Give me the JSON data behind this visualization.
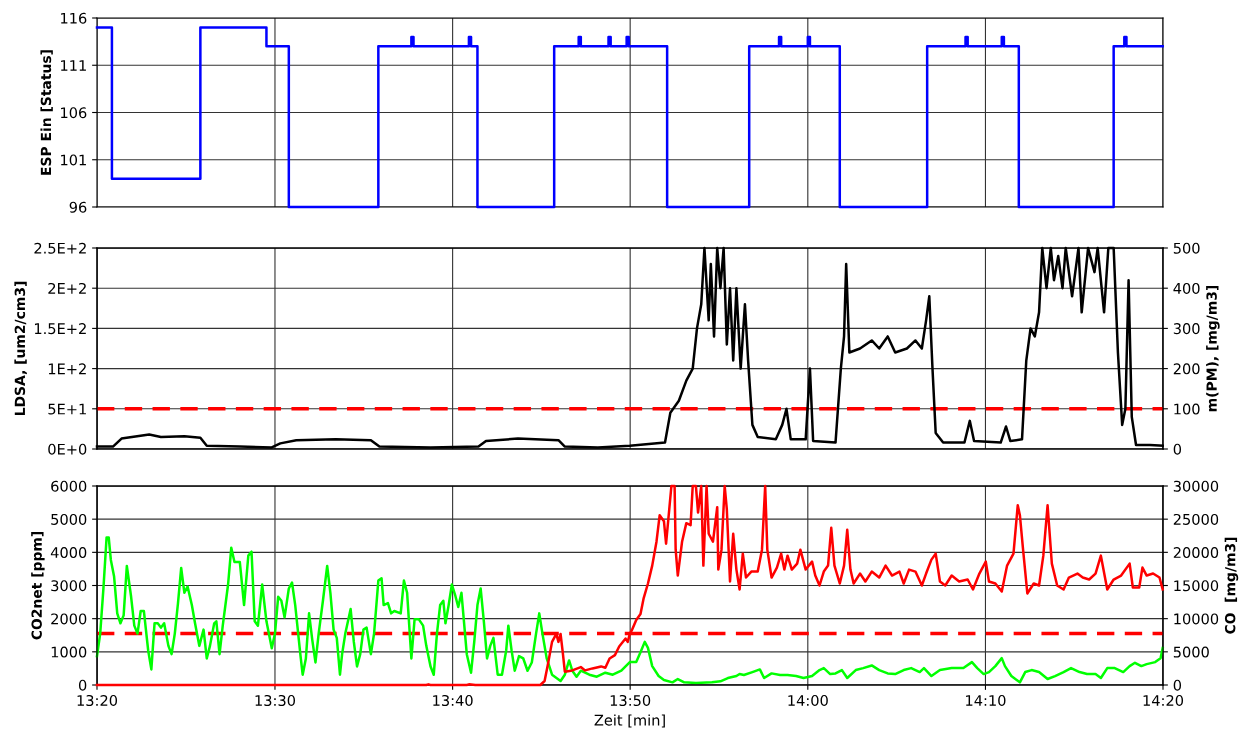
{
  "chart_data": [
    {
      "type": "step",
      "ylabel": "ESP Ein [Status]",
      "xlim": [
        13.333,
        14.3333
      ],
      "xticks": [
        {
          "value": 13.333,
          "label": null
        },
        {
          "value": 13.5,
          "label": null
        },
        {
          "value": 13.6667,
          "label": null
        },
        {
          "value": 13.8333,
          "label": null
        },
        {
          "value": 14.0,
          "label": null
        },
        {
          "value": 14.1667,
          "label": null
        },
        {
          "value": 14.3333,
          "label": null
        }
      ],
      "ylim": [
        96,
        116
      ],
      "yticks": [
        96,
        101,
        106,
        111,
        116
      ],
      "grid": true,
      "tick_labels": "y",
      "series": [
        {
          "color": "#0000ff",
          "x": [
            13.333,
            13.347,
            13.43,
            13.492,
            13.513,
            13.597,
            13.628,
            13.63,
            13.682,
            13.684,
            13.69,
            13.762,
            13.785,
            13.787,
            13.813,
            13.815,
            13.83,
            13.832,
            13.868,
            13.945,
            13.973,
            13.975,
            14.0,
            14.002,
            14.03,
            14.112,
            14.148,
            14.15,
            14.182,
            14.184,
            14.198,
            14.287,
            14.297,
            14.299,
            14.333
          ],
          "values": [
            115,
            99,
            115,
            113,
            96,
            113,
            114,
            113,
            114,
            113,
            96,
            113,
            114,
            113,
            114,
            113,
            114,
            113,
            96,
            113,
            114,
            113,
            114,
            113,
            96,
            113,
            114,
            113,
            114,
            113,
            96,
            113,
            114,
            113,
            113
          ]
        }
      ]
    },
    {
      "type": "line",
      "ylabel": "LDSA, [um2/cm3]",
      "y2label": "m(PM), [mg/m3]",
      "xlim": [
        13.333,
        14.3333
      ],
      "xticks": [
        {
          "value": 13.333,
          "label": null
        },
        {
          "value": 13.5,
          "label": null
        },
        {
          "value": 13.6667,
          "label": null
        },
        {
          "value": 13.8333,
          "label": null
        },
        {
          "value": 14.0,
          "label": null
        },
        {
          "value": 14.1667,
          "label": null
        },
        {
          "value": 14.3333,
          "label": null
        }
      ],
      "ylim": [
        0,
        250
      ],
      "yticks": [
        {
          "value": 0,
          "label": "0E+0"
        },
        {
          "value": 50,
          "label": "5E+1"
        },
        {
          "value": 100,
          "label": "1E+2"
        },
        {
          "value": 150,
          "label": "1.5E+2"
        },
        {
          "value": 200,
          "label": "2E+2"
        },
        {
          "value": 250,
          "label": "2.5E+2"
        }
      ],
      "y2lim": [
        0,
        500
      ],
      "y2ticks": [
        0,
        100,
        200,
        300,
        400,
        500
      ],
      "grid": true,
      "tick_labels": "y",
      "ref_lines": [
        {
          "axis": "y",
          "value": 50,
          "color": "#ff0000",
          "line_style": "dashed"
        }
      ],
      "series": [
        {
          "color": "#000000",
          "x": [
            13.333,
            13.348,
            13.356,
            13.382,
            13.393,
            13.415,
            13.43,
            13.436,
            13.467,
            13.497,
            13.505,
            13.52,
            13.557,
            13.59,
            13.598,
            13.646,
            13.691,
            13.698,
            13.728,
            13.766,
            13.772,
            13.803,
            13.833,
            13.866,
            13.871,
            13.879,
            13.886,
            13.892,
            13.896,
            13.9,
            13.903,
            13.907,
            13.909,
            13.912,
            13.915,
            13.918,
            13.921,
            13.924,
            13.927,
            13.93,
            13.933,
            13.937,
            13.941,
            13.944,
            13.948,
            13.953,
            13.97,
            13.976,
            13.98,
            13.984,
            13.998,
            14.002,
            14.005,
            14.026,
            14.031,
            14.034,
            14.036,
            14.039,
            14.049,
            14.06,
            14.067,
            14.075,
            14.082,
            14.093,
            14.101,
            14.107,
            14.111,
            14.114,
            14.117,
            14.12,
            14.127,
            14.147,
            14.152,
            14.156,
            14.181,
            14.186,
            14.19,
            14.201,
            14.205,
            14.209,
            14.213,
            14.217,
            14.22,
            14.224,
            14.228,
            14.231,
            14.235,
            14.239,
            14.242,
            14.248,
            14.254,
            14.257,
            14.263,
            14.269,
            14.272,
            14.278,
            14.282,
            14.287,
            14.291,
            14.295,
            14.298,
            14.301,
            14.304,
            14.308,
            14.321,
            14.333
          ],
          "values": [
            3,
            3,
            13,
            18,
            15,
            16,
            14,
            4,
            3,
            2,
            7,
            11,
            12,
            11,
            3,
            2,
            3,
            10,
            13,
            11,
            3,
            2,
            4,
            8,
            45,
            60,
            85,
            100,
            150,
            180,
            250,
            160,
            230,
            140,
            250,
            200,
            250,
            130,
            200,
            110,
            200,
            100,
            180,
            110,
            30,
            15,
            12,
            30,
            50,
            12,
            12,
            100,
            10,
            8,
            100,
            140,
            230,
            120,
            125,
            135,
            125,
            140,
            120,
            125,
            135,
            125,
            160,
            190,
            100,
            20,
            8,
            8,
            35,
            10,
            8,
            28,
            10,
            12,
            110,
            150,
            140,
            170,
            250,
            200,
            250,
            210,
            240,
            200,
            250,
            190,
            250,
            170,
            250,
            220,
            250,
            170,
            250,
            250,
            120,
            30,
            50,
            210,
            40,
            5,
            5,
            4
          ]
        }
      ]
    },
    {
      "type": "line",
      "xlabel": "Zeit [min]",
      "ylabel": "CO2net [ppm]",
      "y2label": "CO  [mg/m3]",
      "xlim": [
        13.333,
        14.3333
      ],
      "xticks": [
        {
          "value": 13.333,
          "label": "13:20"
        },
        {
          "value": 13.5,
          "label": "13:30"
        },
        {
          "value": 13.6667,
          "label": "13:40"
        },
        {
          "value": 13.8333,
          "label": "13:50"
        },
        {
          "value": 14.0,
          "label": "14:00"
        },
        {
          "value": 14.1667,
          "label": "14:10"
        },
        {
          "value": 14.3333,
          "label": "14:20"
        }
      ],
      "ylim": [
        0,
        6000
      ],
      "yticks": [
        0,
        1000,
        2000,
        3000,
        4000,
        5000,
        6000
      ],
      "y2lim": [
        0,
        30000
      ],
      "y2ticks": [
        0,
        5000,
        10000,
        15000,
        20000,
        25000,
        30000
      ],
      "grid": true,
      "ref_lines": [
        {
          "axis": "y",
          "value": 1550,
          "color": "#ff0000",
          "line_style": "dashed"
        }
      ],
      "series": [
        {
          "color": "#00ff00",
          "x": [
            13.333,
            13.336,
            13.339,
            13.342,
            13.344,
            13.346,
            13.349,
            13.352,
            13.355,
            13.358,
            13.361,
            13.365,
            13.368,
            13.371,
            13.374,
            13.377,
            13.381,
            13.384,
            13.387,
            13.39,
            13.393,
            13.396,
            13.4,
            13.403,
            13.406,
            13.409,
            13.412,
            13.415,
            13.418,
            13.422,
            13.425,
            13.429,
            13.433,
            13.436,
            13.439,
            13.443,
            13.445,
            13.448,
            13.451,
            13.456,
            13.459,
            13.462,
            13.467,
            13.471,
            13.475,
            13.478,
            13.481,
            13.484,
            13.488,
            13.492,
            13.497,
            13.5,
            13.503,
            13.506,
            13.509,
            13.513,
            13.516,
            13.519,
            13.521,
            13.524,
            13.526,
            13.529,
            13.532,
            13.535,
            13.538,
            13.541,
            13.545,
            13.549,
            13.552,
            13.555,
            13.558,
            13.561,
            13.563,
            13.566,
            13.571,
            13.574,
            13.577,
            13.58,
            13.583,
            13.586,
            13.59,
            13.593,
            13.597,
            13.6,
            13.602,
            13.606,
            13.609,
            13.612,
            13.618,
            13.621,
            13.624,
            13.628,
            13.631,
            13.635,
            13.639,
            13.642,
            13.646,
            13.649,
            13.652,
            13.655,
            13.658,
            13.66,
            13.663,
            13.666,
            13.669,
            13.672,
            13.675,
            13.677,
            13.68,
            13.684,
            13.687,
            13.69,
            13.693,
            13.696,
            13.699,
            13.702,
            13.705,
            13.709,
            13.713,
            13.717,
            13.719,
            13.722,
            13.725,
            13.729,
            13.733,
            13.737,
            13.741,
            13.745,
            13.748,
            13.751,
            13.755,
            13.76,
            13.768,
            13.772,
            13.776,
            13.779,
            13.783,
            13.787,
            13.795,
            13.802,
            13.81,
            13.817,
            13.825,
            13.833,
            13.839,
            13.843,
            13.847,
            13.85,
            13.854,
            13.86,
            13.865,
            13.873,
            13.878,
            13.884,
            13.895,
            13.91,
            13.918,
            13.925,
            13.933,
            13.936,
            13.94,
            13.948,
            13.955,
            13.959,
            13.966,
            13.974,
            13.981,
            13.989,
            13.996,
            14.004,
            14.011,
            14.015,
            14.021,
            14.026,
            14.032,
            14.037,
            14.045,
            14.052,
            14.06,
            14.067,
            14.075,
            14.082,
            14.09,
            14.097,
            14.105,
            14.109,
            14.116,
            14.124,
            14.135,
            14.146,
            14.154,
            14.159,
            14.165,
            14.17,
            14.176,
            14.182,
            14.185,
            14.191,
            14.199,
            14.204,
            14.21,
            14.217,
            14.225,
            14.232,
            14.24,
            14.247,
            14.255,
            14.262,
            14.27,
            14.275,
            14.281,
            14.288,
            14.296,
            14.302,
            14.307,
            14.313,
            14.318,
            14.326,
            14.331,
            14.333
          ],
          "values": [
            870,
            1550,
            2900,
            4450,
            4450,
            3770,
            3280,
            2160,
            1860,
            2100,
            3590,
            2660,
            1790,
            1550,
            2230,
            2230,
            1050,
            470,
            1860,
            1860,
            1730,
            1860,
            1180,
            930,
            1550,
            2470,
            3530,
            2780,
            2970,
            2410,
            1860,
            1180,
            1670,
            800,
            1180,
            1860,
            1920,
            930,
            1790,
            3030,
            4140,
            3710,
            3710,
            2410,
            3900,
            4020,
            1920,
            1790,
            3030,
            1920,
            1110,
            1550,
            2660,
            2540,
            2040,
            2910,
            3090,
            2410,
            1790,
            870,
            310,
            800,
            2160,
            1360,
            680,
            1550,
            2540,
            3590,
            2780,
            1670,
            1420,
            310,
            930,
            1550,
            2290,
            1300,
            560,
            930,
            1670,
            1730,
            930,
            1550,
            3150,
            3220,
            2410,
            2470,
            2160,
            2230,
            2160,
            3150,
            2780,
            800,
            1980,
            1980,
            1790,
            1180,
            560,
            310,
            1550,
            2410,
            2540,
            1860,
            2410,
            3030,
            2720,
            2350,
            2780,
            2040,
            930,
            370,
            1300,
            2410,
            2910,
            1920,
            800,
            1180,
            1420,
            310,
            310,
            1050,
            1790,
            1050,
            430,
            870,
            800,
            430,
            680,
            1550,
            2160,
            1550,
            800,
            310,
            120,
            310,
            740,
            430,
            250,
            430,
            310,
            250,
            370,
            310,
            430,
            690,
            690,
            990,
            1300,
            1120,
            570,
            270,
            150,
            80,
            180,
            80,
            60,
            80,
            110,
            210,
            270,
            330,
            300,
            390,
            470,
            210,
            350,
            300,
            300,
            270,
            210,
            270,
            450,
            510,
            330,
            350,
            450,
            210,
            450,
            510,
            590,
            450,
            350,
            330,
            450,
            510,
            390,
            510,
            270,
            450,
            510,
            510,
            690,
            510,
            330,
            390,
            570,
            810,
            570,
            270,
            80,
            390,
            450,
            390,
            180,
            270,
            390,
            510,
            390,
            330,
            330,
            210,
            510,
            510,
            390,
            570,
            670,
            570,
            630,
            690,
            810,
            1120
          ]
        },
        {
          "color": "#ff0000",
          "axis": "y2",
          "x": [
            13.333,
            13.642,
            13.644,
            13.646,
            13.68,
            13.682,
            13.688,
            13.745,
            13.749,
            13.753,
            13.756,
            13.76,
            13.764,
            13.766,
            13.768,
            13.77,
            13.772,
            13.779,
            13.787,
            13.791,
            13.798,
            13.806,
            13.81,
            13.814,
            13.819,
            13.823,
            13.829,
            13.831,
            13.833,
            13.835,
            13.839,
            13.843,
            13.846,
            13.85,
            13.854,
            13.858,
            13.861,
            13.865,
            13.867,
            13.87,
            13.872,
            13.875,
            13.876,
            13.878,
            13.882,
            13.886,
            13.89,
            13.892,
            13.895,
            13.897,
            13.9,
            13.902,
            13.905,
            13.907,
            13.911,
            13.915,
            13.916,
            13.919,
            13.922,
            13.924,
            13.927,
            13.93,
            13.933,
            13.936,
            13.939,
            13.942,
            13.947,
            13.953,
            13.957,
            13.96,
            13.962,
            13.966,
            13.971,
            13.975,
            13.978,
            13.981,
            13.985,
            13.99,
            13.993,
            13.998,
            14.004,
            14.007,
            14.011,
            14.015,
            14.019,
            14.022,
            14.025,
            14.03,
            14.034,
            14.037,
            14.04,
            14.043,
            14.049,
            14.054,
            14.06,
            14.067,
            14.073,
            14.079,
            14.086,
            14.09,
            14.095,
            14.101,
            14.107,
            14.111,
            14.116,
            14.12,
            14.124,
            14.129,
            14.135,
            14.142,
            14.15,
            14.155,
            14.161,
            14.167,
            14.17,
            14.176,
            14.182,
            14.187,
            14.193,
            14.197,
            14.199,
            14.202,
            14.206,
            14.212,
            14.217,
            14.221,
            14.225,
            14.229,
            14.234,
            14.24,
            14.245,
            14.253,
            14.258,
            14.264,
            14.27,
            14.275,
            14.281,
            14.287,
            14.294,
            14.302,
            14.305,
            14.311,
            14.314,
            14.318,
            14.324,
            14.33,
            14.333
          ],
          "values": [
            0,
            0,
            100,
            0,
            0,
            100,
            0,
            0,
            0,
            600,
            3000,
            6500,
            7700,
            6500,
            7700,
            5000,
            2000,
            2200,
            2700,
            2200,
            2500,
            2800,
            2600,
            4000,
            4500,
            5800,
            7000,
            6500,
            7700,
            8300,
            9800,
            10700,
            13100,
            15300,
            18000,
            21600,
            25600,
            24700,
            21300,
            26500,
            30000,
            30000,
            20400,
            16500,
            21600,
            24400,
            24100,
            30000,
            30000,
            26000,
            30000,
            18000,
            30000,
            22800,
            21600,
            26800,
            17400,
            20400,
            30000,
            26500,
            15600,
            22800,
            17400,
            14400,
            19800,
            16200,
            17100,
            17100,
            20400,
            30000,
            20400,
            16200,
            17700,
            19800,
            17400,
            19500,
            17400,
            18300,
            20400,
            17400,
            18600,
            16500,
            15000,
            17100,
            18000,
            23700,
            18000,
            15300,
            18000,
            23400,
            17400,
            15300,
            16800,
            15600,
            17100,
            16200,
            18000,
            16500,
            17100,
            15300,
            17400,
            17100,
            15000,
            16800,
            18900,
            19800,
            15600,
            15000,
            16500,
            15600,
            15900,
            14400,
            16800,
            18600,
            15600,
            15300,
            14100,
            18000,
            19800,
            27100,
            25600,
            20400,
            13800,
            15300,
            15000,
            19500,
            27100,
            18300,
            15000,
            14400,
            16200,
            16800,
            16200,
            15900,
            16800,
            19500,
            14400,
            15900,
            16500,
            18300,
            14700,
            14700,
            17700,
            16500,
            16800,
            16200,
            14400
          ]
        }
      ]
    }
  ]
}
